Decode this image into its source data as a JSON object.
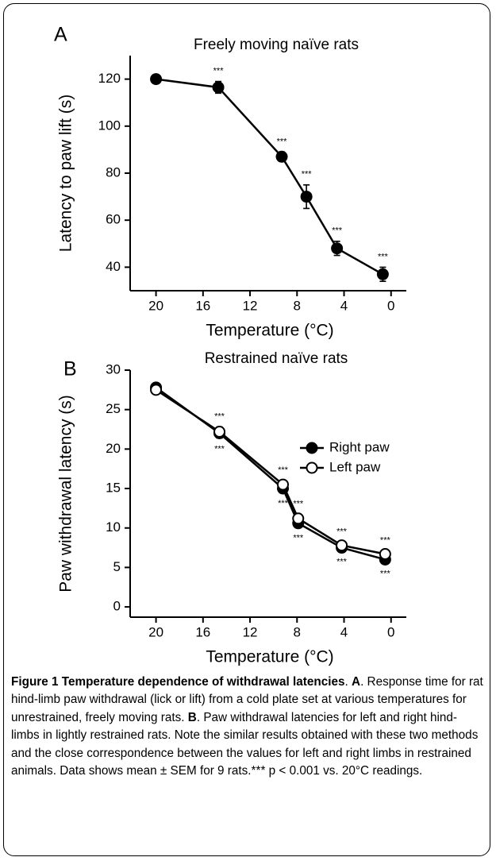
{
  "chart_data": [
    {
      "type": "line",
      "panel_label": "A",
      "title": "Freely moving naïve rats",
      "x_label": "Temperature (°C)",
      "y_label": "Latency to paw lift (s)",
      "x": [
        20,
        14.7,
        9.3,
        7.2,
        4.6,
        0.7
      ],
      "xlim": [
        22.2,
        -1.3
      ],
      "xticks": [
        20,
        16,
        12,
        8,
        4,
        0
      ],
      "ylim": [
        30,
        130
      ],
      "yticks": [
        40,
        60,
        80,
        100,
        120
      ],
      "series": [
        {
          "values": [
            120,
            116.5,
            87,
            70,
            48,
            37
          ],
          "errors": [
            0.5,
            2.5,
            2,
            5,
            3,
            3
          ],
          "color": "#000000",
          "marker_fill": "#000000",
          "sig_labels": [
            null,
            "***",
            "***",
            "***",
            "***",
            "***"
          ],
          "sig_position": "above"
        }
      ]
    },
    {
      "type": "line",
      "panel_label": "B",
      "title": "Restrained naïve rats",
      "x_label": "Temperature (°C)",
      "y_label": "Paw withdrawal latency (s)",
      "x": [
        20,
        14.6,
        9.2,
        7.9,
        4.2,
        0.5
      ],
      "xlim": [
        22.2,
        -1.3
      ],
      "xticks": [
        20,
        16,
        12,
        8,
        4,
        0
      ],
      "ylim": [
        -1.3,
        30
      ],
      "yticks": [
        0,
        5,
        10,
        15,
        20,
        25,
        30
      ],
      "legend": "upper right",
      "series": [
        {
          "name": "Right paw",
          "values": [
            27.8,
            22,
            15,
            10.6,
            7.5,
            6.0
          ],
          "errors": [
            0.4,
            0.6,
            0.5,
            0.5,
            0.4,
            0.4
          ],
          "color": "#000000",
          "marker_fill": "#000000",
          "sig_labels": [
            null,
            "***",
            "***",
            "***",
            "***",
            "***"
          ],
          "sig_position": "below"
        },
        {
          "name": "Left paw",
          "values": [
            27.5,
            22.2,
            15.5,
            11.2,
            7.8,
            6.7
          ],
          "errors": [
            0.4,
            0.6,
            0.5,
            0.5,
            0.4,
            0.4
          ],
          "color": "#000000",
          "marker_fill": "#ffffff",
          "sig_labels": [
            null,
            "***",
            "***",
            "***",
            "***",
            "***"
          ],
          "sig_position": "above"
        }
      ]
    }
  ],
  "caption": [
    {
      "text": "Figure 1 Temperature dependence of withdrawal latencies",
      "bold": true
    },
    {
      "text": ". ",
      "bold": false
    },
    {
      "text": "A",
      "bold": true
    },
    {
      "text": ". Response time for rat hind-limb paw withdrawal (lick or lift) from a cold plate set at various temperatures for unrestrained, freely moving rats. ",
      "bold": false
    },
    {
      "text": "B",
      "bold": true
    },
    {
      "text": ". Paw withdrawal latencies for left and right hind-limbs in lightly restrained rats. Note the similar results obtained with these two methods and the close correspondence between the values for left and right limbs in restrained animals. Data shows mean ± SEM for 9 rats.*** p < 0.001 vs. 20°C readings.",
      "bold": false
    }
  ]
}
